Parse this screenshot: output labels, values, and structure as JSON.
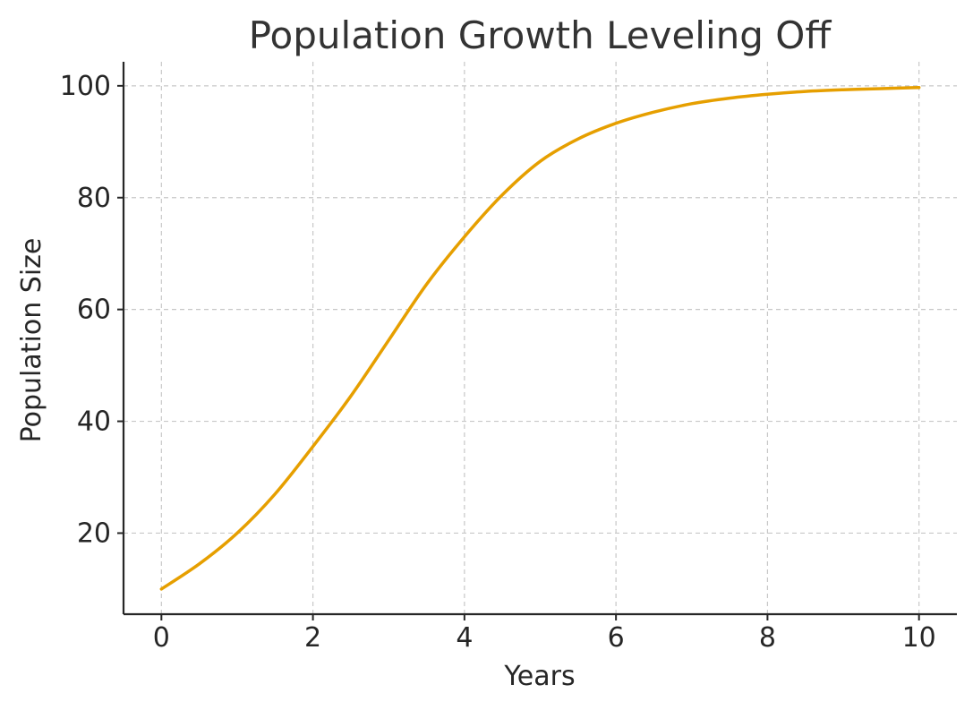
{
  "chart_data": {
    "type": "line",
    "title": "Population Growth Leveling Off",
    "xlabel": "Years",
    "ylabel": "Population Size",
    "xlim": [
      -0.5,
      10.5
    ],
    "ylim": [
      5.5,
      104.3
    ],
    "xticks": [
      0,
      2,
      4,
      6,
      8,
      10
    ],
    "yticks": [
      20,
      40,
      60,
      80,
      100
    ],
    "xtick_labels": [
      "0",
      "2",
      "4",
      "6",
      "8",
      "10"
    ],
    "ytick_labels": [
      "20",
      "40",
      "60",
      "80",
      "100"
    ],
    "grid": true,
    "series": [
      {
        "color": "#E69F00",
        "x": [
          0,
          0.5,
          1,
          1.5,
          2,
          2.5,
          3,
          3.5,
          4,
          4.5,
          5,
          5.5,
          6,
          6.5,
          7,
          7.5,
          8,
          8.5,
          9,
          9.5,
          10
        ],
        "y": [
          10,
          14.5,
          20,
          27,
          35.5,
          44.5,
          54.5,
          64.5,
          73,
          80.5,
          86.5,
          90.5,
          93.3,
          95.3,
          96.8,
          97.8,
          98.5,
          99,
          99.3,
          99.5,
          99.7
        ]
      }
    ]
  }
}
